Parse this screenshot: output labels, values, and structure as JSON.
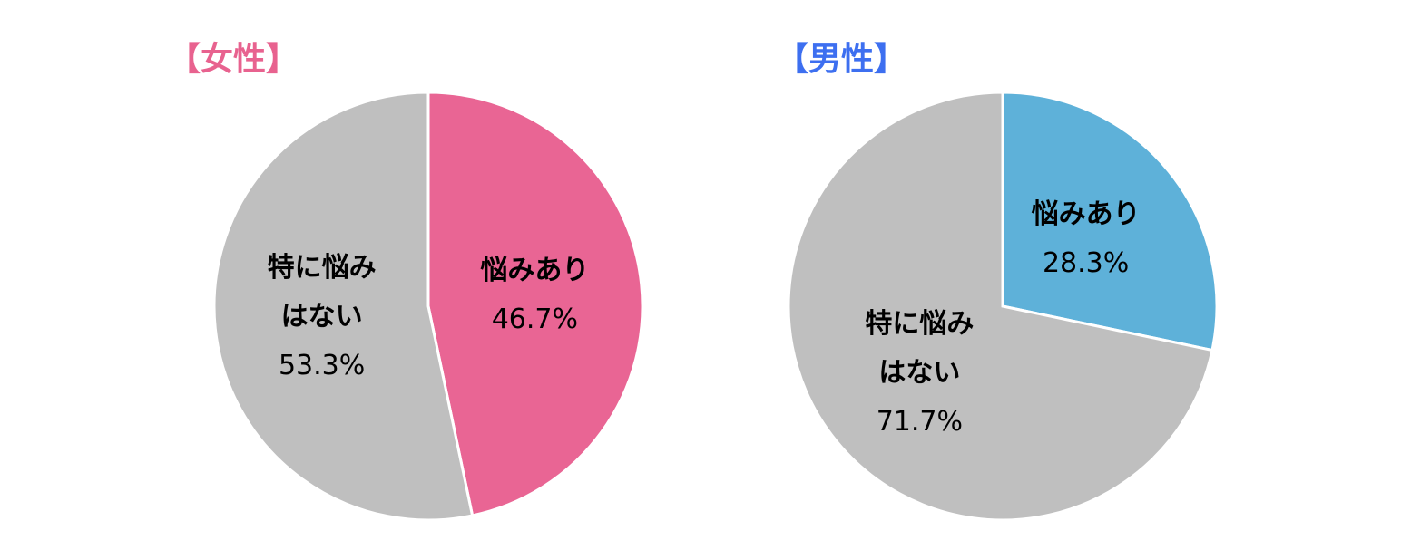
{
  "chart_data": [
    {
      "type": "pie",
      "title": "【女性】",
      "title_color": "#e8628f",
      "categories": [
        "悩みあり",
        "特に悩みはない"
      ],
      "values": [
        46.7,
        53.3
      ],
      "value_labels": [
        "46.7%",
        "53.3%"
      ],
      "colors": [
        "#e96594",
        "#bfbfbf"
      ]
    },
    {
      "type": "pie",
      "title": "【男性】",
      "title_color": "#3d6ff0",
      "categories": [
        "悩みあり",
        "特に悩みはない"
      ],
      "values": [
        28.3,
        71.7
      ],
      "value_labels": [
        "28.3%",
        "71.7%"
      ],
      "colors": [
        "#5eb1d9",
        "#bfbfbf"
      ]
    }
  ]
}
